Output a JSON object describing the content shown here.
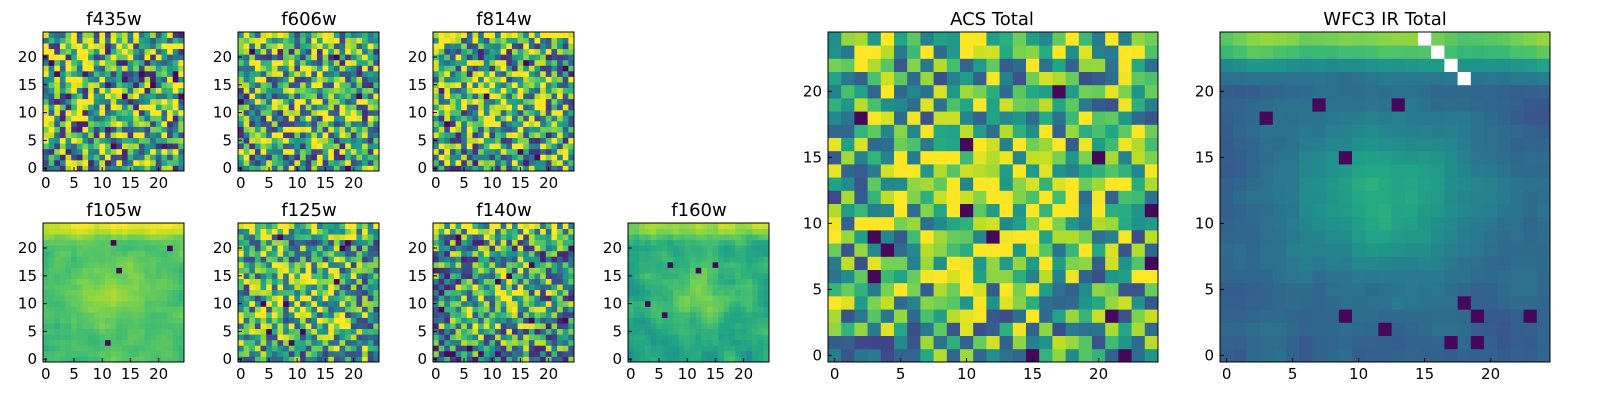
{
  "chart_data": [
    {
      "type": "heatmap",
      "id": "f435w",
      "title": "f435w",
      "xlim": [
        -0.5,
        24.5
      ],
      "ylim": [
        -0.5,
        24.5
      ],
      "xticks": [
        0,
        5,
        10,
        15,
        20
      ],
      "yticks": [
        0,
        5,
        10,
        15,
        20
      ],
      "colormap": "viridis",
      "grid_size": 25,
      "pattern": "noise",
      "seed": 11,
      "center_boost": 0.0,
      "top_band": 0.0,
      "noise_amp": 0.55,
      "base": 0.62,
      "dark_spots": 9,
      "white_cells": []
    },
    {
      "type": "heatmap",
      "id": "f606w",
      "title": "f606w",
      "xlim": [
        -0.5,
        24.5
      ],
      "ylim": [
        -0.5,
        24.5
      ],
      "xticks": [
        0,
        5,
        10,
        15,
        20
      ],
      "yticks": [
        0,
        5,
        10,
        15,
        20
      ],
      "colormap": "viridis",
      "grid_size": 25,
      "pattern": "noise",
      "seed": 23,
      "center_boost": 0.12,
      "top_band": 0.1,
      "noise_amp": 0.5,
      "base": 0.6,
      "dark_spots": 5,
      "white_cells": []
    },
    {
      "type": "heatmap",
      "id": "f814w",
      "title": "f814w",
      "xlim": [
        -0.5,
        24.5
      ],
      "ylim": [
        -0.5,
        24.5
      ],
      "xticks": [
        0,
        5,
        10,
        15,
        20
      ],
      "yticks": [
        0,
        5,
        10,
        15,
        20
      ],
      "colormap": "viridis",
      "grid_size": 25,
      "pattern": "noise",
      "seed": 37,
      "center_boost": 0.2,
      "top_band": 0.2,
      "noise_amp": 0.5,
      "base": 0.58,
      "dark_spots": 6,
      "white_cells": []
    },
    {
      "type": "heatmap",
      "id": "f105w",
      "title": "f105w",
      "xlim": [
        -0.5,
        24.5
      ],
      "ylim": [
        -0.5,
        24.5
      ],
      "xticks": [
        0,
        5,
        10,
        15,
        20
      ],
      "yticks": [
        0,
        5,
        10,
        15,
        20
      ],
      "colormap": "viridis",
      "grid_size": 25,
      "pattern": "smooth",
      "seed": 41,
      "center_boost": 0.15,
      "top_band": 0.3,
      "noise_amp": 0.14,
      "base": 0.7,
      "dark_spots": 4,
      "white_cells": []
    },
    {
      "type": "heatmap",
      "id": "f125w",
      "title": "f125w",
      "xlim": [
        -0.5,
        24.5
      ],
      "ylim": [
        -0.5,
        24.5
      ],
      "xticks": [
        0,
        5,
        10,
        15,
        20
      ],
      "yticks": [
        0,
        5,
        10,
        15,
        20
      ],
      "colormap": "viridis",
      "grid_size": 25,
      "pattern": "noise",
      "seed": 53,
      "center_boost": 0.15,
      "top_band": 0.25,
      "noise_amp": 0.45,
      "base": 0.6,
      "dark_spots": 9,
      "white_cells": []
    },
    {
      "type": "heatmap",
      "id": "f140w",
      "title": "f140w",
      "xlim": [
        -0.5,
        24.5
      ],
      "ylim": [
        -0.5,
        24.5
      ],
      "xticks": [
        0,
        5,
        10,
        15,
        20
      ],
      "yticks": [
        0,
        5,
        10,
        15,
        20
      ],
      "colormap": "viridis",
      "grid_size": 25,
      "pattern": "noise",
      "seed": 67,
      "center_boost": 0.25,
      "top_band": 0.3,
      "noise_amp": 0.45,
      "base": 0.5,
      "dark_spots": 10,
      "white_cells": []
    },
    {
      "type": "heatmap",
      "id": "f160w",
      "title": "f160w",
      "xlim": [
        -0.5,
        24.5
      ],
      "ylim": [
        -0.5,
        24.5
      ],
      "xticks": [
        0,
        5,
        10,
        15,
        20
      ],
      "yticks": [
        0,
        5,
        10,
        15,
        20
      ],
      "colormap": "viridis",
      "grid_size": 25,
      "pattern": "smooth",
      "seed": 79,
      "center_boost": 0.2,
      "top_band": 0.3,
      "noise_amp": 0.2,
      "base": 0.6,
      "dark_spots": 5,
      "white_cells": []
    },
    {
      "type": "heatmap",
      "id": "acs_total",
      "title": "ACS Total",
      "xlim": [
        -0.5,
        24.5
      ],
      "ylim": [
        -0.5,
        24.5
      ],
      "xticks": [
        0,
        5,
        10,
        15,
        20
      ],
      "yticks": [
        0,
        5,
        10,
        15,
        20
      ],
      "colormap": "viridis",
      "grid_size": 25,
      "pattern": "noise",
      "seed": 97,
      "center_boost": 0.25,
      "top_band": 0.2,
      "noise_amp": 0.4,
      "base": 0.6,
      "dark_spots": 14,
      "white_cells": []
    },
    {
      "type": "heatmap",
      "id": "wfc3_ir_total",
      "title": "WFC3 IR Total",
      "xlim": [
        -0.5,
        24.5
      ],
      "ylim": [
        -0.5,
        24.5
      ],
      "xticks": [
        0,
        5,
        10,
        15,
        20
      ],
      "yticks": [
        0,
        5,
        10,
        15,
        20
      ],
      "colormap": "viridis",
      "grid_size": 25,
      "pattern": "smooth",
      "seed": 113,
      "center_boost": 0.3,
      "top_band": 0.55,
      "noise_amp": 0.12,
      "base": 0.32,
      "dark_spots": 12,
      "white_cells": [
        [
          15,
          24
        ],
        [
          16,
          23
        ],
        [
          17,
          22
        ],
        [
          18,
          21
        ]
      ]
    }
  ]
}
